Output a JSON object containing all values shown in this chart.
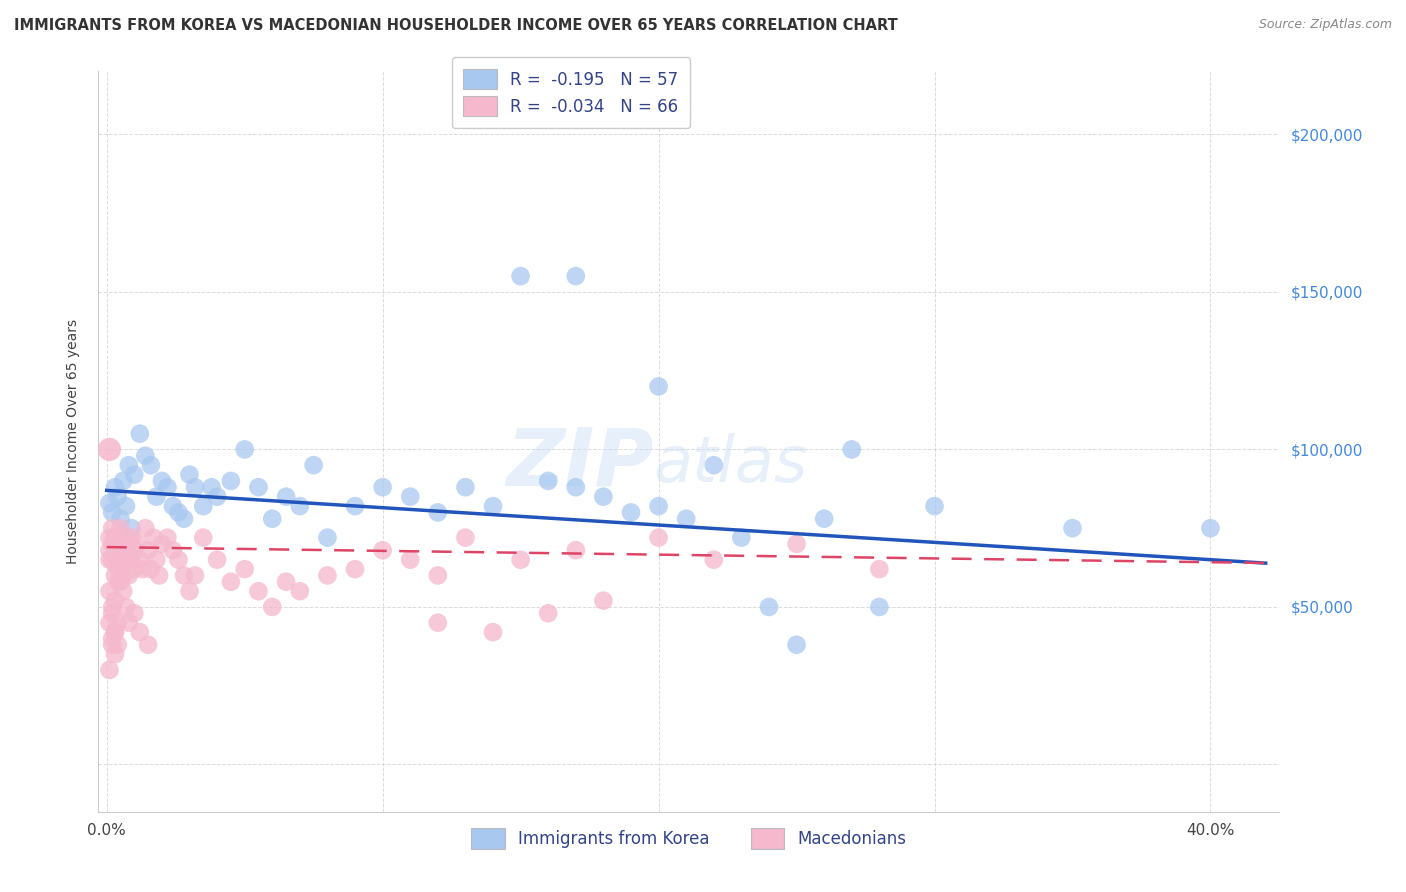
{
  "title": "IMMIGRANTS FROM KOREA VS MACEDONIAN HOUSEHOLDER INCOME OVER 65 YEARS CORRELATION CHART",
  "source": "Source: ZipAtlas.com",
  "ylabel": "Householder Income Over 65 years",
  "x_ticks": [
    0.0,
    0.1,
    0.2,
    0.3,
    0.4
  ],
  "x_tick_labels": [
    "0.0%",
    "",
    "",
    "",
    "40.0%"
  ],
  "y_ticks": [
    0,
    50000,
    100000,
    150000,
    200000
  ],
  "y_tick_labels": [
    "",
    "$50,000",
    "$100,000",
    "$150,000",
    "$200,000"
  ],
  "xlim": [
    -0.003,
    0.425
  ],
  "ylim": [
    -15000,
    220000
  ],
  "blue_color": "#A8C8F0",
  "pink_color": "#F5B8CC",
  "blue_line_color": "#2255BB",
  "pink_line_color": "#DD4466",
  "legend_r_blue": "-0.195",
  "legend_n_blue": "57",
  "legend_r_pink": "-0.034",
  "legend_n_pink": "66",
  "legend_label_blue": "Immigrants from Korea",
  "legend_label_pink": "Macedonians",
  "watermark_zip": "ZIP",
  "watermark_atlas": "atlas",
  "blue_scatter_x": [
    0.001,
    0.002,
    0.003,
    0.004,
    0.005,
    0.006,
    0.007,
    0.008,
    0.009,
    0.01,
    0.012,
    0.014,
    0.016,
    0.018,
    0.02,
    0.022,
    0.024,
    0.026,
    0.028,
    0.03,
    0.032,
    0.035,
    0.038,
    0.04,
    0.045,
    0.05,
    0.055,
    0.06,
    0.065,
    0.07,
    0.075,
    0.08,
    0.09,
    0.1,
    0.11,
    0.12,
    0.13,
    0.14,
    0.15,
    0.16,
    0.17,
    0.18,
    0.19,
    0.2,
    0.21,
    0.22,
    0.23,
    0.24,
    0.25,
    0.26,
    0.27,
    0.28,
    0.3,
    0.35,
    0.4,
    0.17,
    0.2
  ],
  "blue_scatter_y": [
    83000,
    80000,
    88000,
    85000,
    78000,
    90000,
    82000,
    95000,
    75000,
    92000,
    105000,
    98000,
    95000,
    85000,
    90000,
    88000,
    82000,
    80000,
    78000,
    92000,
    88000,
    82000,
    88000,
    85000,
    90000,
    100000,
    88000,
    78000,
    85000,
    82000,
    95000,
    72000,
    82000,
    88000,
    85000,
    80000,
    88000,
    82000,
    155000,
    90000,
    88000,
    85000,
    80000,
    82000,
    78000,
    95000,
    72000,
    50000,
    38000,
    78000,
    100000,
    50000,
    82000,
    75000,
    75000,
    155000,
    120000
  ],
  "pink_scatter_x": [
    0.001,
    0.001,
    0.001,
    0.002,
    0.002,
    0.002,
    0.003,
    0.003,
    0.003,
    0.004,
    0.004,
    0.004,
    0.005,
    0.005,
    0.005,
    0.006,
    0.006,
    0.006,
    0.007,
    0.007,
    0.008,
    0.008,
    0.009,
    0.009,
    0.01,
    0.01,
    0.011,
    0.012,
    0.013,
    0.014,
    0.015,
    0.016,
    0.017,
    0.018,
    0.019,
    0.02,
    0.022,
    0.024,
    0.026,
    0.028,
    0.03,
    0.032,
    0.035,
    0.04,
    0.045,
    0.05,
    0.055,
    0.06,
    0.065,
    0.07,
    0.08,
    0.09,
    0.1,
    0.11,
    0.12,
    0.13,
    0.15,
    0.17,
    0.2,
    0.22,
    0.25,
    0.28,
    0.12,
    0.14,
    0.16,
    0.18
  ],
  "pink_scatter_y": [
    72000,
    68000,
    65000,
    75000,
    70000,
    65000,
    68000,
    72000,
    60000,
    65000,
    62000,
    58000,
    75000,
    68000,
    72000,
    65000,
    60000,
    70000,
    68000,
    72000,
    65000,
    60000,
    72000,
    65000,
    68000,
    62000,
    70000,
    65000,
    62000,
    75000,
    68000,
    62000,
    72000,
    65000,
    60000,
    70000,
    72000,
    68000,
    65000,
    60000,
    55000,
    60000,
    72000,
    65000,
    58000,
    62000,
    55000,
    50000,
    58000,
    55000,
    60000,
    62000,
    68000,
    65000,
    60000,
    72000,
    65000,
    68000,
    72000,
    65000,
    70000,
    62000,
    45000,
    42000,
    48000,
    52000
  ],
  "pink_extra_x": [
    0.001,
    0.002,
    0.003,
    0.004,
    0.003,
    0.002,
    0.001,
    0.002,
    0.003,
    0.004,
    0.001,
    0.002,
    0.003,
    0.005,
    0.006,
    0.007,
    0.008,
    0.01,
    0.012,
    0.015
  ],
  "pink_extra_y": [
    45000,
    48000,
    42000,
    38000,
    35000,
    40000,
    30000,
    38000,
    42000,
    45000,
    55000,
    50000,
    52000,
    58000,
    55000,
    50000,
    45000,
    48000,
    42000,
    38000
  ],
  "blue_slope": -55000,
  "blue_intercept": 87000,
  "pink_slope": -12000,
  "pink_intercept": 69000,
  "grid_color": "#CCCCCC",
  "background_color": "#FFFFFF",
  "right_tick_color": "#4488DD",
  "title_fontsize": 10.5,
  "source_fontsize": 9,
  "axis_label_fontsize": 10,
  "tick_fontsize": 11
}
